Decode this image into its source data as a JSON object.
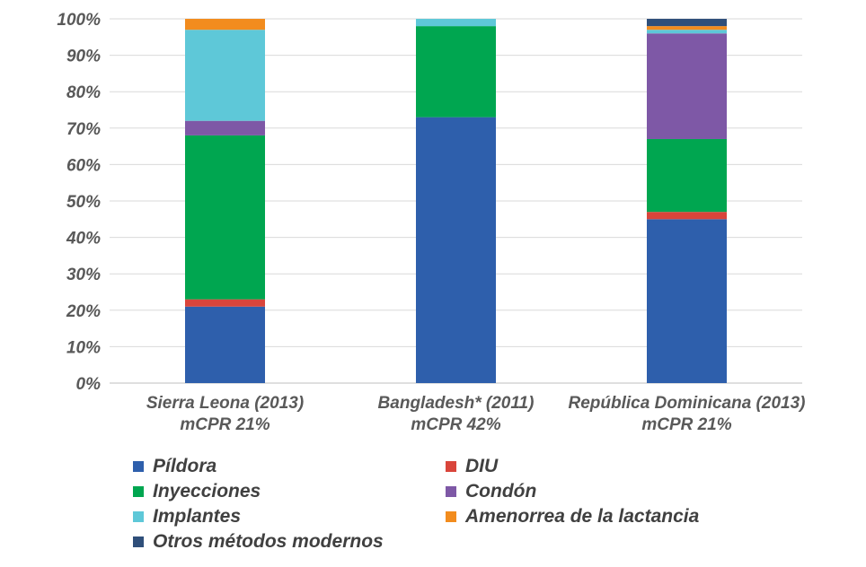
{
  "chart_data": {
    "type": "bar",
    "stacked": true,
    "categories": [
      [
        "Sierra Leona (2013)",
        "mCPR 21%"
      ],
      [
        "Bangladesh* (2011)",
        "mCPR 42%"
      ],
      [
        "República Dominicana (2013)",
        "mCPR 21%"
      ]
    ],
    "yticks": [
      "0%",
      "10%",
      "20%",
      "30%",
      "40%",
      "50%",
      "60%",
      "70%",
      "80%",
      "90%",
      "100%"
    ],
    "ylim": [
      0,
      100
    ],
    "grid": true,
    "legend_position": "bottom",
    "series": [
      {
        "name": "Píldora",
        "color": "#2E5FAC",
        "values": [
          21,
          73,
          45
        ]
      },
      {
        "name": "DIU",
        "color": "#D9453B",
        "values": [
          2,
          0,
          2
        ]
      },
      {
        "name": "Inyecciones",
        "color": "#00A650",
        "values": [
          45,
          25,
          20
        ]
      },
      {
        "name": "Condón",
        "color": "#7E58A6",
        "values": [
          4,
          0,
          29
        ]
      },
      {
        "name": "Implantes",
        "color": "#5EC8D8",
        "values": [
          25,
          2,
          1
        ]
      },
      {
        "name": "Amenorrea de la lactancia",
        "color": "#F28C1E",
        "values": [
          3,
          0,
          1
        ]
      },
      {
        "name": "Otros métodos modernos",
        "color": "#2F4F7A",
        "values": [
          0,
          0,
          2
        ]
      }
    ]
  }
}
